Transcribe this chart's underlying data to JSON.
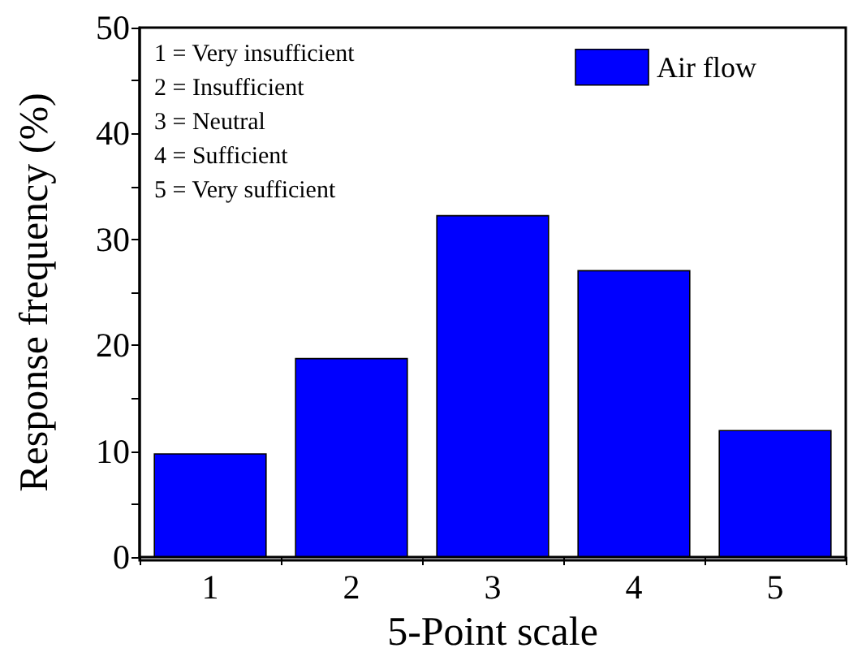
{
  "chart_data": {
    "type": "bar",
    "xlabel": "5-Point scale",
    "ylabel": "Response frequency (%)",
    "categories": [
      "1",
      "2",
      "3",
      "4",
      "5"
    ],
    "series": [
      {
        "name": "Air flow",
        "color": "#0000ff",
        "values": [
          9.8,
          18.8,
          32.3,
          27.1,
          12.0
        ]
      }
    ],
    "ylim": [
      0,
      50
    ],
    "yticks": [
      0,
      {
        "value": 5,
        "label": null
      },
      10,
      {
        "value": 15,
        "label": null
      },
      20,
      {
        "value": 25,
        "label": null
      },
      30,
      {
        "value": 35,
        "label": null
      },
      40,
      {
        "value": 45,
        "label": null
      },
      50
    ],
    "annotations": [
      "1 = Very insufficient",
      "2 = Insufficient",
      "3 = Neutral",
      "4 = Sufficient",
      "5 = Very sufficient"
    ],
    "legend": "top right",
    "grid": false
  }
}
